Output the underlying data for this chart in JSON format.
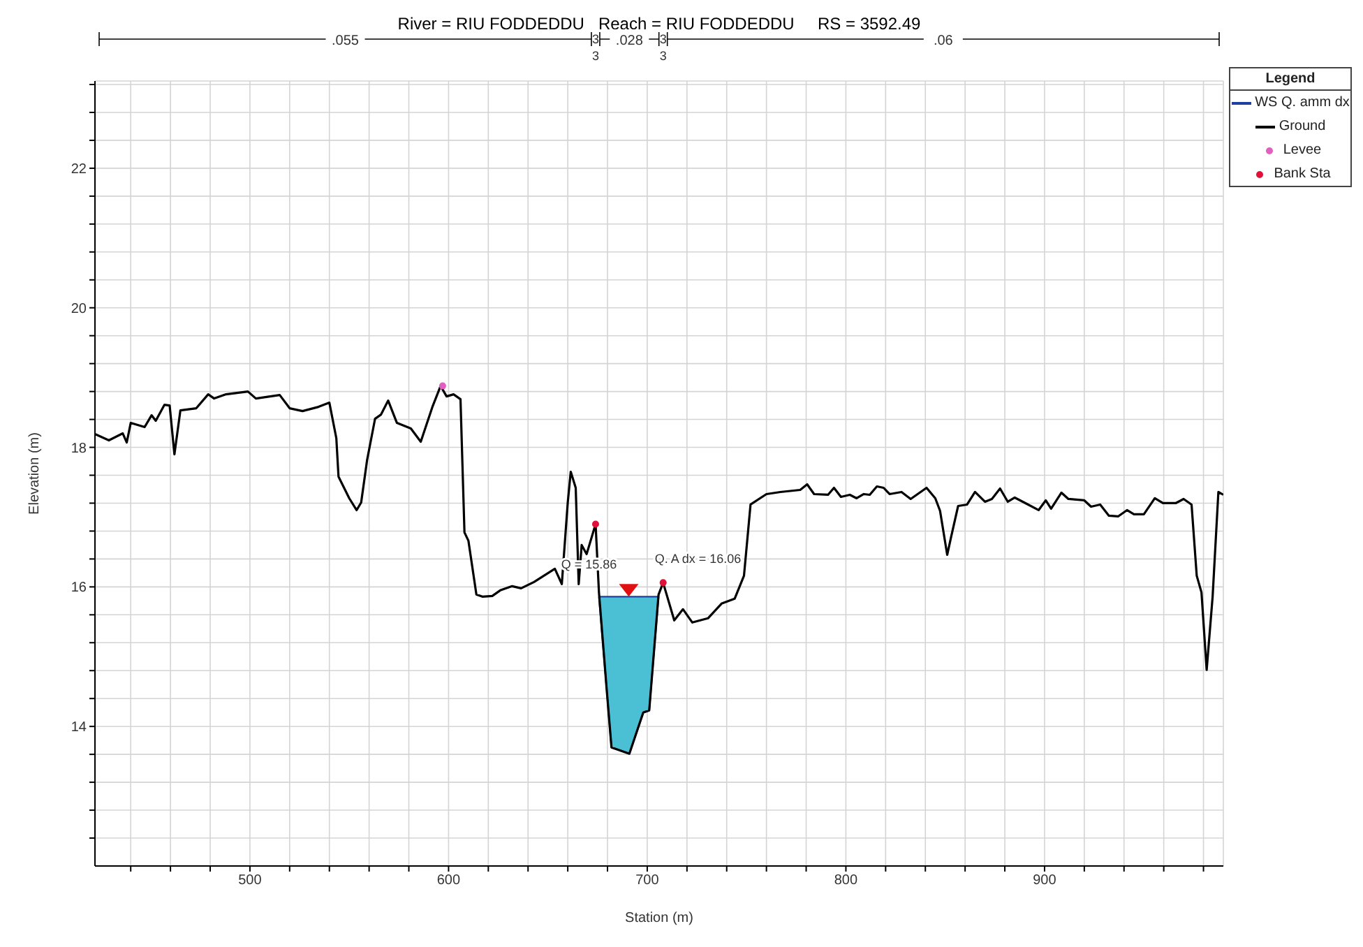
{
  "chart_data": {
    "type": "line",
    "title": "River = RIU FODDEDDU   Reach = RIU FODDEDDU     RS = 3592.49",
    "xlabel": "Station (m)",
    "ylabel": "Elevation (m)",
    "legend_title": "Legend",
    "legend": "top right",
    "grid": true,
    "xlim": [
      422,
      990
    ],
    "ylim": [
      12,
      23.25
    ],
    "xticks": [
      {
        "value": 440,
        "label": null
      },
      {
        "value": 460,
        "label": null
      },
      {
        "value": 480,
        "label": null
      },
      500,
      {
        "value": 520,
        "label": null
      },
      {
        "value": 540,
        "label": null
      },
      {
        "value": 560,
        "label": null
      },
      {
        "value": 580,
        "label": null
      },
      600,
      {
        "value": 620,
        "label": null
      },
      {
        "value": 640,
        "label": null
      },
      {
        "value": 660,
        "label": null
      },
      {
        "value": 680,
        "label": null
      },
      700,
      {
        "value": 720,
        "label": null
      },
      {
        "value": 740,
        "label": null
      },
      {
        "value": 760,
        "label": null
      },
      {
        "value": 780,
        "label": null
      },
      800,
      {
        "value": 820,
        "label": null
      },
      {
        "value": 840,
        "label": null
      },
      {
        "value": 860,
        "label": null
      },
      {
        "value": 880,
        "label": null
      },
      900,
      {
        "value": 920,
        "label": null
      },
      {
        "value": 940,
        "label": null
      },
      {
        "value": 960,
        "label": null
      },
      {
        "value": 980,
        "label": null
      }
    ],
    "yticks": [
      {
        "value": 12.4,
        "label": null
      },
      {
        "value": 12.8,
        "label": null
      },
      {
        "value": 13.2,
        "label": null
      },
      {
        "value": 13.6,
        "label": null
      },
      14,
      {
        "value": 14.4,
        "label": null
      },
      {
        "value": 14.8,
        "label": null
      },
      {
        "value": 15.2,
        "label": null
      },
      {
        "value": 15.6,
        "label": null
      },
      16,
      {
        "value": 16.4,
        "label": null
      },
      {
        "value": 16.8,
        "label": null
      },
      {
        "value": 17.2,
        "label": null
      },
      {
        "value": 17.6,
        "label": null
      },
      18,
      {
        "value": 18.4,
        "label": null
      },
      {
        "value": 18.8,
        "label": null
      },
      {
        "value": 19.2,
        "label": null
      },
      {
        "value": 19.6,
        "label": null
      },
      20,
      {
        "value": 20.4,
        "label": null
      },
      {
        "value": 20.8,
        "label": null
      },
      {
        "value": 21.2,
        "label": null
      },
      {
        "value": 21.6,
        "label": null
      },
      22,
      {
        "value": 22.4,
        "label": null
      },
      {
        "value": 22.8,
        "label": null
      },
      {
        "value": 23.2,
        "label": null
      }
    ],
    "annotations": [
      ".055",
      ".028",
      ".06",
      "3",
      "3",
      "3",
      "3",
      {
        "text": "Q = 15.86",
        "x": 691,
        "y": 15.86
      },
      {
        "text": "Q. A dx = 16.06",
        "x": 708,
        "y": 16.06
      }
    ],
    "series": [
      {
        "name": "WS Q. amm dx",
        "type": "area",
        "color": "#4bbfd3",
        "x": [
          675.7,
          679.5,
          682,
          691,
          698,
          701,
          705.7
        ],
        "values": [
          15.86,
          15.86,
          15.86,
          15.86,
          15.86,
          15.86,
          15.86
        ]
      },
      {
        "name": "Ground",
        "color": "#000000",
        "line_style": "solid",
        "marker": "none",
        "x": [
          422,
          429,
          436,
          438,
          440,
          447,
          450.5,
          452.6,
          457,
          459.6,
          462,
          465,
          473,
          479,
          482,
          488,
          499,
          503,
          515,
          520,
          526.5,
          534.5,
          540,
          543.5,
          544.6,
          550,
          553.7,
          556,
          559,
          563,
          566,
          569.6,
          574,
          581,
          586,
          592,
          596,
          599,
          602.5,
          606,
          608,
          610,
          614,
          617,
          622,
          626,
          632,
          636.5,
          643,
          653.5,
          657,
          660,
          661.5,
          664,
          665.5,
          667,
          669.5,
          674,
          675.7,
          679.5,
          682,
          691,
          698,
          701,
          705.7,
          708,
          713.6,
          718,
          722.7,
          730.6,
          737.4,
          744,
          748.7,
          752,
          760,
          767,
          777,
          780.5,
          784,
          791,
          794,
          797.5,
          802,
          805.4,
          809,
          812,
          815.6,
          819,
          822,
          828,
          832.6,
          840.6,
          845,
          847.4,
          851,
          853,
          856.5,
          861,
          865,
          870,
          873.5,
          877.6,
          881.5,
          885,
          890.4,
          897,
          900.6,
          903.3,
          908.5,
          912,
          920,
          923.4,
          928,
          932.4,
          937,
          941.5,
          945,
          950,
          955.5,
          959.6,
          966,
          970,
          974,
          976.6,
          979,
          981.6,
          984.6,
          987.5,
          990
        ],
        "values": [
          18.19,
          18.1,
          18.2,
          18.07,
          18.35,
          18.29,
          18.46,
          18.38,
          18.61,
          18.6,
          17.9,
          18.53,
          18.56,
          18.76,
          18.7,
          18.76,
          18.8,
          18.7,
          18.75,
          18.56,
          18.52,
          18.58,
          18.64,
          18.13,
          17.58,
          17.27,
          17.1,
          17.21,
          17.82,
          18.41,
          18.47,
          18.67,
          18.35,
          18.27,
          18.08,
          18.59,
          18.88,
          18.73,
          18.76,
          18.69,
          16.78,
          16.66,
          15.89,
          15.86,
          15.87,
          15.95,
          16.01,
          15.98,
          16.07,
          16.26,
          16.04,
          17.21,
          17.65,
          17.42,
          16.04,
          16.6,
          16.47,
          16.9,
          15.92,
          14.56,
          13.7,
          13.61,
          14.2,
          14.23,
          15.89,
          16.06,
          15.52,
          15.68,
          15.49,
          15.55,
          15.76,
          15.83,
          16.16,
          17.18,
          17.33,
          17.36,
          17.39,
          17.47,
          17.33,
          17.32,
          17.42,
          17.29,
          17.32,
          17.27,
          17.33,
          17.32,
          17.44,
          17.42,
          17.33,
          17.36,
          17.26,
          17.42,
          17.27,
          17.09,
          16.46,
          16.72,
          17.16,
          17.18,
          17.36,
          17.22,
          17.26,
          17.41,
          17.22,
          17.28,
          17.2,
          17.1,
          17.24,
          17.12,
          17.35,
          17.26,
          17.24,
          17.15,
          17.18,
          17.02,
          17.01,
          17.1,
          17.04,
          17.04,
          17.27,
          17.2,
          17.2,
          17.26,
          17.18,
          16.16,
          15.92,
          14.81,
          15.86,
          17.36,
          17.32
        ]
      },
      {
        "name": "Levee",
        "type": "scatter",
        "color": "#e060c0",
        "marker": "circle",
        "x": [
          597
        ],
        "values": [
          18.88
        ]
      },
      {
        "name": "Bank Sta",
        "type": "scatter",
        "color": "#e0103a",
        "marker": "circle",
        "x": [
          674,
          708
        ],
        "values": [
          16.9,
          16.06
        ]
      }
    ]
  }
}
